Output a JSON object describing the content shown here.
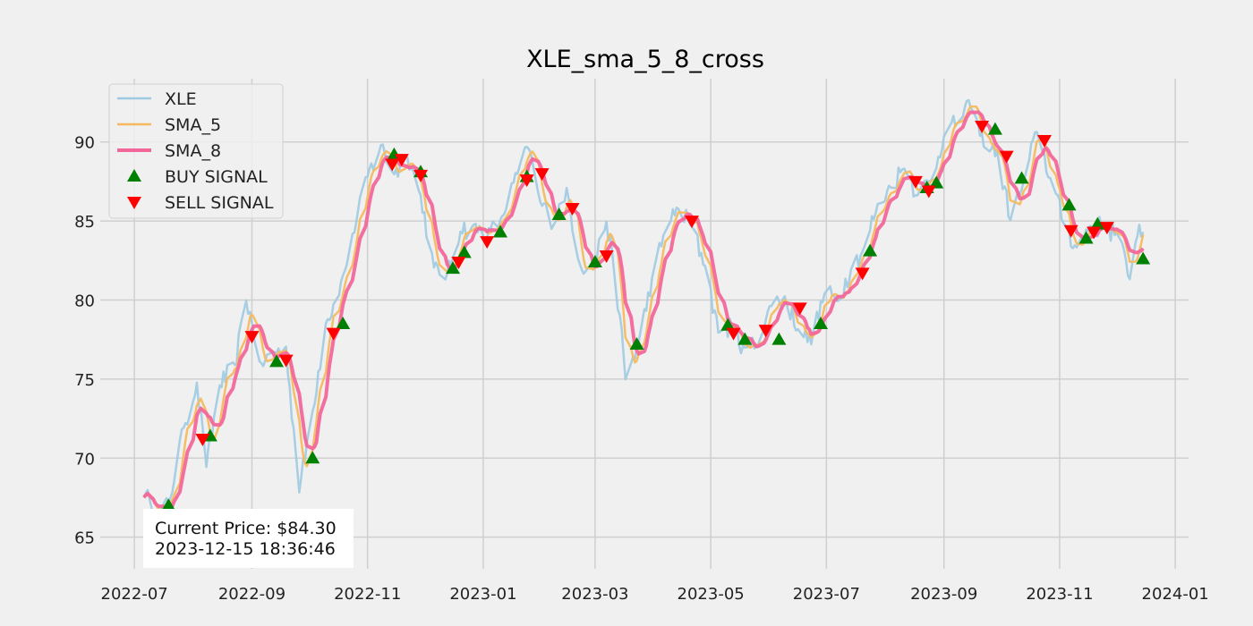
{
  "chart_data": {
    "type": "line",
    "title": "XLE_sma_5_8_cross",
    "xlabel": "",
    "ylabel": "",
    "x_start": "2022-07-06",
    "x_end": "2023-12-15",
    "xlim": [
      "2022-06-13",
      "2024-01-08"
    ],
    "ylim": [
      63.0,
      94.0
    ],
    "x_ticks": [
      "2022-07",
      "2022-09",
      "2022-11",
      "2023-01",
      "2023-03",
      "2023-05",
      "2023-07",
      "2023-09",
      "2023-11",
      "2024-01"
    ],
    "y_ticks": [
      65,
      70,
      75,
      80,
      85,
      90
    ],
    "grid": true,
    "legend_position": "top-left",
    "price_anchors": [
      [
        "2022-07-06",
        67.6
      ],
      [
        "2022-07-14",
        66.6
      ],
      [
        "2022-07-19",
        67.0
      ],
      [
        "2022-07-27",
        72.0
      ],
      [
        "2022-08-03",
        74.7
      ],
      [
        "2022-08-08",
        69.5
      ],
      [
        "2022-08-15",
        74.6
      ],
      [
        "2022-08-23",
        75.8
      ],
      [
        "2022-08-29",
        80.0
      ],
      [
        "2022-09-06",
        75.9
      ],
      [
        "2022-09-13",
        76.7
      ],
      [
        "2022-09-19",
        77.0
      ],
      [
        "2022-09-26",
        67.9
      ],
      [
        "2022-10-03",
        73.0
      ],
      [
        "2022-10-10",
        78.6
      ],
      [
        "2022-10-17",
        80.4
      ],
      [
        "2022-10-24",
        84.1
      ],
      [
        "2022-11-01",
        87.8
      ],
      [
        "2022-11-08",
        89.8
      ],
      [
        "2022-11-15",
        88.0
      ],
      [
        "2022-11-22",
        89.1
      ],
      [
        "2022-11-29",
        86.6
      ],
      [
        "2022-12-06",
        82.0
      ],
      [
        "2022-12-13",
        81.6
      ],
      [
        "2022-12-20",
        84.4
      ],
      [
        "2022-12-27",
        84.7
      ],
      [
        "2023-01-03",
        84.0
      ],
      [
        "2023-01-10",
        85.0
      ],
      [
        "2023-01-17",
        87.4
      ],
      [
        "2023-01-25",
        89.6
      ],
      [
        "2023-01-31",
        86.2
      ],
      [
        "2023-02-07",
        84.8
      ],
      [
        "2023-02-14",
        87.0
      ],
      [
        "2023-02-21",
        82.3
      ],
      [
        "2023-02-28",
        82.0
      ],
      [
        "2023-03-07",
        85.0
      ],
      [
        "2023-03-14",
        79.0
      ],
      [
        "2023-03-17",
        75.0
      ],
      [
        "2023-03-24",
        77.3
      ],
      [
        "2023-03-31",
        81.3
      ],
      [
        "2023-04-07",
        84.4
      ],
      [
        "2023-04-14",
        85.8
      ],
      [
        "2023-04-21",
        84.6
      ],
      [
        "2023-04-28",
        82.2
      ],
      [
        "2023-05-05",
        78.0
      ],
      [
        "2023-05-12",
        78.4
      ],
      [
        "2023-05-19",
        76.9
      ],
      [
        "2023-05-26",
        77.3
      ],
      [
        "2023-06-02",
        79.7
      ],
      [
        "2023-06-09",
        80.2
      ],
      [
        "2023-06-16",
        78.2
      ],
      [
        "2023-06-23",
        77.3
      ],
      [
        "2023-06-30",
        80.4
      ],
      [
        "2023-07-07",
        80.0
      ],
      [
        "2023-07-14",
        82.0
      ],
      [
        "2023-07-21",
        83.3
      ],
      [
        "2023-07-28",
        86.0
      ],
      [
        "2023-08-04",
        87.2
      ],
      [
        "2023-08-11",
        88.4
      ],
      [
        "2023-08-18",
        86.7
      ],
      [
        "2023-08-25",
        87.5
      ],
      [
        "2023-09-01",
        90.4
      ],
      [
        "2023-09-08",
        91.2
      ],
      [
        "2023-09-15",
        92.3
      ],
      [
        "2023-09-22",
        89.8
      ],
      [
        "2023-09-29",
        89.4
      ],
      [
        "2023-10-06",
        85.1
      ],
      [
        "2023-10-13",
        87.4
      ],
      [
        "2023-10-20",
        90.7
      ],
      [
        "2023-10-27",
        87.7
      ],
      [
        "2023-11-03",
        84.9
      ],
      [
        "2023-11-10",
        83.3
      ],
      [
        "2023-11-17",
        84.7
      ],
      [
        "2023-11-24",
        84.6
      ],
      [
        "2023-12-01",
        84.2
      ],
      [
        "2023-12-08",
        81.4
      ],
      [
        "2023-12-13",
        84.8
      ],
      [
        "2023-12-15",
        84.3
      ]
    ],
    "series": [
      {
        "name": "XLE",
        "color": "#9ecae1",
        "width": 2.5
      },
      {
        "name": "SMA_5",
        "color": "#f5b95f",
        "width": 2.5
      },
      {
        "name": "SMA_8",
        "color": "#f2679a",
        "width": 4
      }
    ],
    "buy_signals": [
      [
        "2022-07-19",
        67.0
      ],
      [
        "2022-08-10",
        71.4
      ],
      [
        "2022-09-14",
        76.1
      ],
      [
        "2022-10-03",
        70.0
      ],
      [
        "2022-10-19",
        78.5
      ],
      [
        "2022-11-15",
        89.2
      ],
      [
        "2022-11-29",
        88.1
      ],
      [
        "2022-12-16",
        82.0
      ],
      [
        "2022-12-22",
        83.0
      ],
      [
        "2023-01-10",
        84.3
      ],
      [
        "2023-01-24",
        87.8
      ],
      [
        "2023-02-10",
        85.4
      ],
      [
        "2023-03-01",
        82.4
      ],
      [
        "2023-03-23",
        77.2
      ],
      [
        "2023-05-10",
        78.4
      ],
      [
        "2023-05-19",
        77.5
      ],
      [
        "2023-06-06",
        77.5
      ],
      [
        "2023-06-28",
        78.5
      ],
      [
        "2023-07-24",
        83.1
      ],
      [
        "2023-08-23",
        87.1
      ],
      [
        "2023-08-28",
        87.4
      ],
      [
        "2023-09-28",
        90.8
      ],
      [
        "2023-10-12",
        87.7
      ],
      [
        "2023-11-06",
        86.0
      ],
      [
        "2023-11-15",
        83.9
      ],
      [
        "2023-11-21",
        84.8
      ],
      [
        "2023-12-15",
        82.6
      ]
    ],
    "sell_signals": [
      [
        "2022-08-06",
        71.2
      ],
      [
        "2022-09-01",
        77.7
      ],
      [
        "2022-09-19",
        76.2
      ],
      [
        "2022-10-14",
        77.9
      ],
      [
        "2022-11-14",
        88.6
      ],
      [
        "2022-11-19",
        88.9
      ],
      [
        "2022-11-29",
        87.9
      ],
      [
        "2022-12-19",
        82.4
      ],
      [
        "2023-01-03",
        83.7
      ],
      [
        "2023-01-24",
        87.6
      ],
      [
        "2023-02-01",
        88.0
      ],
      [
        "2023-02-17",
        85.8
      ],
      [
        "2023-03-07",
        82.8
      ],
      [
        "2023-04-21",
        85.0
      ],
      [
        "2023-05-13",
        77.9
      ],
      [
        "2023-05-30",
        78.1
      ],
      [
        "2023-06-17",
        79.5
      ],
      [
        "2023-07-20",
        81.7
      ],
      [
        "2023-08-17",
        87.5
      ],
      [
        "2023-08-24",
        86.9
      ],
      [
        "2023-09-21",
        91.0
      ],
      [
        "2023-10-04",
        89.1
      ],
      [
        "2023-10-24",
        90.1
      ],
      [
        "2023-11-07",
        84.4
      ],
      [
        "2023-11-19",
        84.3
      ],
      [
        "2023-11-26",
        84.6
      ]
    ],
    "buy_color": "#008000",
    "sell_color": "#ff0000"
  },
  "legend": {
    "items": [
      {
        "label": "XLE",
        "kind": "line",
        "color": "#9ecae1"
      },
      {
        "label": "SMA_5",
        "kind": "line",
        "color": "#f5b95f"
      },
      {
        "label": "SMA_8",
        "kind": "line",
        "color": "#f2679a"
      },
      {
        "label": "BUY SIGNAL",
        "kind": "up-triangle",
        "color": "#008000"
      },
      {
        "label": "SELL SIGNAL",
        "kind": "down-triangle",
        "color": "#ff0000"
      }
    ]
  },
  "info_box": {
    "price_line": "Current Price: $84.30",
    "timestamp": "2023-12-15 18:36:46"
  }
}
